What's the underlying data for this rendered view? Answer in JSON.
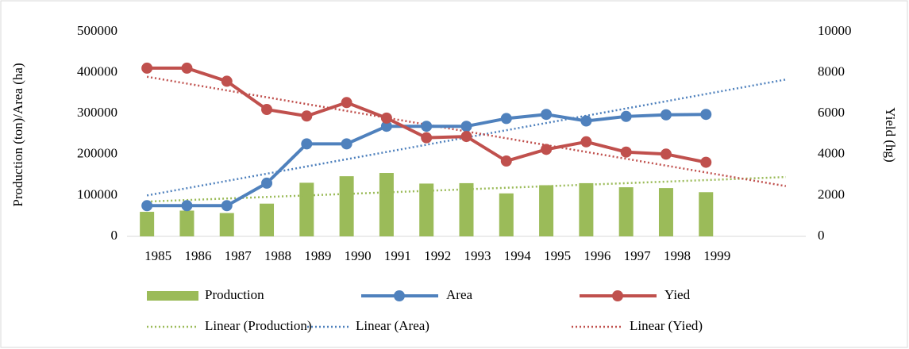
{
  "chart_data": {
    "type": "combo",
    "y_label": "Production (ton)/Area (ha)",
    "y2_label": "Yield (hg)",
    "categories": [
      "1985",
      "1986",
      "1987",
      "1988",
      "1989",
      "1990",
      "1991",
      "1992",
      "1993",
      "1994",
      "1995",
      "1996",
      "1997",
      "1998",
      "1999",
      null,
      null
    ],
    "ylim": [
      0,
      500000
    ],
    "yticks": [
      0,
      100000,
      200000,
      300000,
      400000,
      500000
    ],
    "y2lim": [
      0,
      10000
    ],
    "y2ticks": [
      0,
      2000,
      4000,
      6000,
      8000,
      10000
    ],
    "legend": "bottom",
    "series": [
      {
        "name": "Production",
        "type": "bar",
        "color": "#9bbb59",
        "values": [
          60000,
          63000,
          57000,
          80000,
          131000,
          147000,
          155000,
          129000,
          130000,
          105000,
          125000,
          130000,
          120000,
          118000,
          108000,
          null,
          null
        ]
      },
      {
        "name": "Area",
        "type": "line",
        "color": "#4f81bd",
        "values": [
          75000,
          75000,
          75000,
          130000,
          226000,
          226000,
          269000,
          269000,
          269000,
          288000,
          298000,
          282000,
          293000,
          297000,
          298000,
          null,
          null
        ]
      },
      {
        "name": "Yied",
        "type": "line",
        "color": "#c0504d",
        "axis": "y2",
        "values": [
          8220,
          8220,
          7580,
          6200,
          5880,
          6540,
          5780,
          4820,
          4880,
          3680,
          4250,
          4620,
          4120,
          4020,
          3620,
          null,
          null
        ]
      },
      {
        "name": "Linear (Production)",
        "type": "trend",
        "color": "#9bbb59",
        "values": [
          85000,
          88750,
          92500,
          96250,
          100000,
          103750,
          107500,
          111250,
          115000,
          118750,
          122500,
          126250,
          130000,
          133750,
          137500,
          141250,
          145000
        ]
      },
      {
        "name": "Linear (Area)",
        "type": "trend",
        "color": "#4f81bd",
        "values": [
          100000,
          117700,
          135400,
          153100,
          170800,
          188500,
          206200,
          223900,
          241600,
          259300,
          277000,
          294700,
          312400,
          330100,
          347800,
          365500,
          383200
        ]
      },
      {
        "name": "Linear (Yied)",
        "type": "trend",
        "color": "#c0504d",
        "axis": "y2",
        "values": [
          7800,
          7466,
          7132,
          6798,
          6464,
          6130,
          5796,
          5462,
          5128,
          4794,
          4460,
          4126,
          3792,
          3458,
          3124,
          2790,
          2456
        ]
      }
    ]
  }
}
